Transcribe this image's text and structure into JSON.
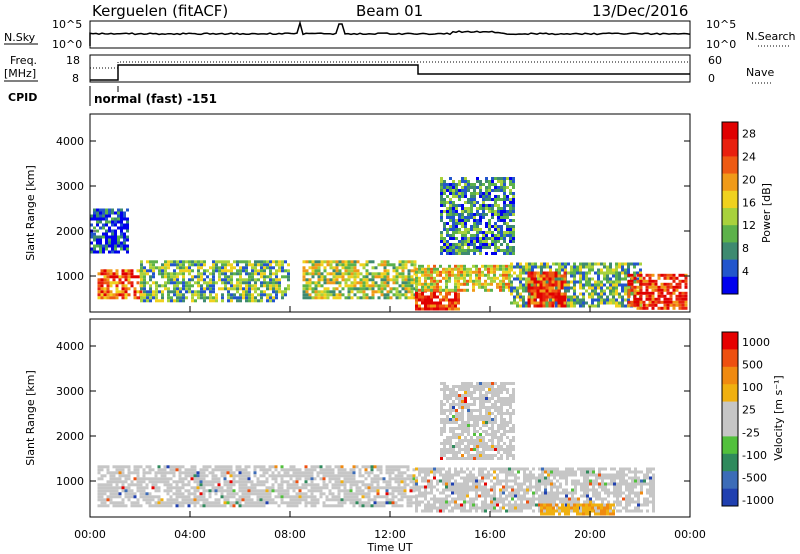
{
  "header": {
    "station": "Kerguelen (fitACF)",
    "beam": "Beam 01",
    "date": "13/Dec/2016"
  },
  "top_panel": {
    "nsky_label": "N.Sky",
    "nsearch_label": "N.Search",
    "left_ticks": [
      "10^5",
      "10^0"
    ],
    "right_ticks": [
      "10^5",
      "10^0"
    ]
  },
  "freq_panel": {
    "freq_label_line1": "Freq.",
    "freq_label_line2": "[MHz]",
    "left_ticks": [
      "18",
      "8"
    ],
    "right_ticks": [
      "60",
      "0"
    ],
    "nave_label": "Nave"
  },
  "cpid_panel": {
    "label": "CPID",
    "text": "normal (fast) -151"
  },
  "chart_data": [
    {
      "type": "heatmap",
      "name": "power",
      "ylabel": "Slant Range [km]",
      "y_ticks": [
        "1000",
        "2000",
        "3000",
        "4000"
      ],
      "y_values": [
        1000,
        2000,
        3000,
        4000
      ],
      "ylim": [
        200,
        4600
      ],
      "xlim": [
        0,
        24
      ],
      "colorbar_label": "Power [dB]",
      "colorbar_ticks": [
        "4",
        "8",
        "12",
        "16",
        "20",
        "24",
        "28"
      ],
      "colorbar_colors": [
        "#0000ee",
        "#2255cc",
        "#3e8a70",
        "#5cb24a",
        "#a8d23c",
        "#f0d21e",
        "#f09a18",
        "#ee5a12",
        "#e8200e",
        "#e00000"
      ],
      "regions": [
        {
          "t0": 0.3,
          "t1": 2.0,
          "r0": 500,
          "r1": 1150,
          "level": 24
        },
        {
          "t0": 2.0,
          "t1": 8.0,
          "r0": 450,
          "r1": 1350,
          "level": 14
        },
        {
          "t0": 8.5,
          "t1": 13.0,
          "r0": 500,
          "r1": 1350,
          "level": 16
        },
        {
          "t0": 13.0,
          "t1": 14.8,
          "r0": 250,
          "r1": 700,
          "level": 28
        },
        {
          "t0": 13.0,
          "t1": 16.8,
          "r0": 700,
          "r1": 1250,
          "level": 20
        },
        {
          "t0": 16.8,
          "t1": 22.0,
          "r0": 300,
          "r1": 1300,
          "level": 14
        },
        {
          "t0": 17.5,
          "t1": 19.0,
          "r0": 300,
          "r1": 1100,
          "level": 28
        },
        {
          "t0": 21.5,
          "t1": 23.8,
          "r0": 300,
          "r1": 1050,
          "level": 28
        },
        {
          "t0": 14.0,
          "t1": 17.0,
          "r0": 1500,
          "r1": 3200,
          "level": 10
        },
        {
          "t0": 0.0,
          "t1": 1.5,
          "r0": 1500,
          "r1": 2500,
          "level": 8
        }
      ]
    },
    {
      "type": "heatmap",
      "name": "velocity",
      "ylabel": "Slant Range [km]",
      "y_ticks": [
        "1000",
        "2000",
        "3000",
        "4000"
      ],
      "y_values": [
        1000,
        2000,
        3000,
        4000
      ],
      "ylim": [
        200,
        4600
      ],
      "xlim": [
        0,
        24
      ],
      "colorbar_label": "Velocity [m s⁻¹]",
      "colorbar_ticks": [
        "1000",
        "500",
        "100",
        "25",
        "-25",
        "-100",
        "-500",
        "-1000"
      ],
      "colorbar_colors": [
        "#2040b0",
        "#3c6cb8",
        "#2f8a5c",
        "#52c03c",
        "#c6c6c6",
        "#c6c6c6",
        "#f0b010",
        "#f08a10",
        "#ee5010",
        "#e60000"
      ],
      "regions": [
        {
          "t0": 0.3,
          "t1": 13.0,
          "r0": 450,
          "r1": 1350,
          "level": 0
        },
        {
          "t0": 13.0,
          "t1": 22.5,
          "r0": 300,
          "r1": 1300,
          "level": 0
        },
        {
          "t0": 14.0,
          "t1": 17.0,
          "r0": 1500,
          "r1": 3200,
          "level": 0
        },
        {
          "t0": 18.0,
          "t1": 21.0,
          "r0": 250,
          "r1": 500,
          "level": -100
        }
      ]
    }
  ],
  "x_axis": {
    "ticks": [
      "00:00",
      "04:00",
      "08:00",
      "12:00",
      "16:00",
      "20:00",
      "00:00"
    ],
    "values": [
      0,
      4,
      8,
      12,
      16,
      20,
      24
    ],
    "label": "Time UT"
  }
}
